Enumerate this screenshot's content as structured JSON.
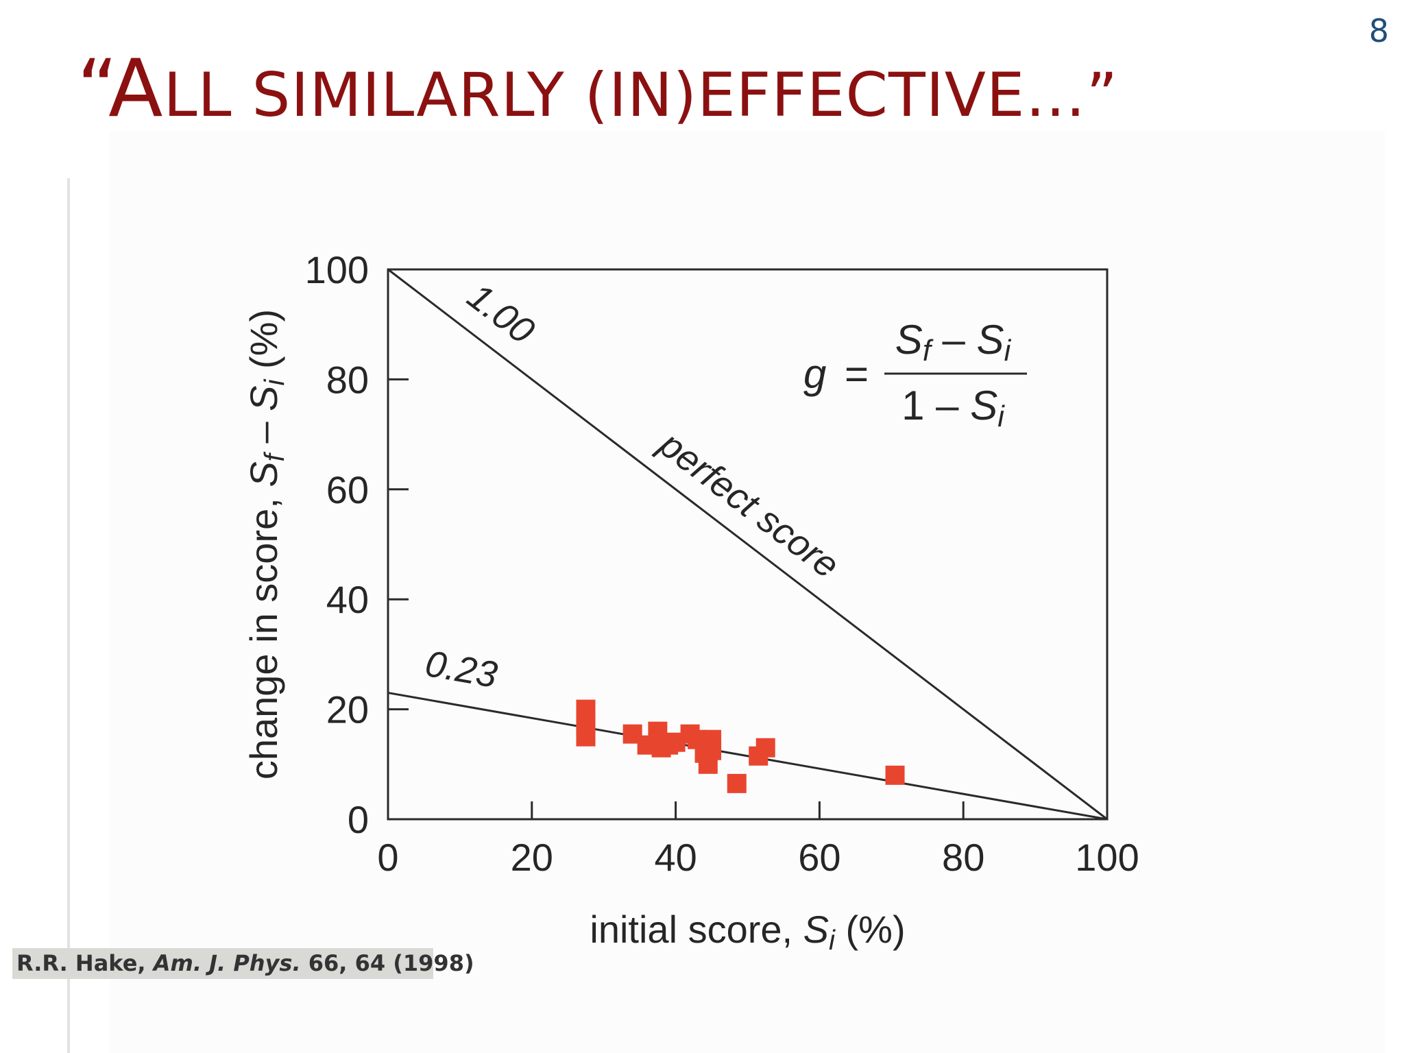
{
  "slide": {
    "number": "8",
    "title_open": "“A",
    "title_rest": "LL SIMILARLY (IN)EFFECTIVE…”"
  },
  "citation": {
    "author": "R.R. Hake, ",
    "journal": "Am. J. Phys.",
    "details": " 66, 64 (1998)"
  },
  "chart_data": {
    "type": "scatter",
    "xlabel": "initial score, S_i (%)",
    "ylabel": "change in score, S_f – S_i (%)",
    "xlim": [
      0,
      100
    ],
    "ylim": [
      0,
      100
    ],
    "x_ticks": [
      "0",
      "20",
      "40",
      "60",
      "80",
      "100"
    ],
    "y_ticks": [
      "0",
      "20",
      "40",
      "60",
      "80",
      "100"
    ],
    "grid": false,
    "formula": "g = (S_f – S_i) / (1 – S_i)",
    "marker_color": "#e8452f",
    "lines": [
      {
        "label": "1.00",
        "annotation": "perfect score",
        "x": [
          0,
          100
        ],
        "y": [
          100,
          0
        ]
      },
      {
        "label": "0.23",
        "x": [
          0,
          100
        ],
        "y": [
          23,
          0
        ]
      }
    ],
    "points": {
      "x": [
        27.5,
        27.5,
        27.5,
        34,
        36,
        37.5,
        38,
        39,
        40,
        42,
        43,
        44,
        44.5,
        45,
        45,
        48.5,
        51.5,
        52.5,
        70.5
      ],
      "y": [
        20,
        17,
        15,
        15.5,
        13.5,
        16,
        13,
        13.5,
        14,
        15.5,
        14.5,
        12,
        10,
        14.5,
        12.5,
        6.5,
        11.5,
        13,
        8
      ]
    }
  }
}
